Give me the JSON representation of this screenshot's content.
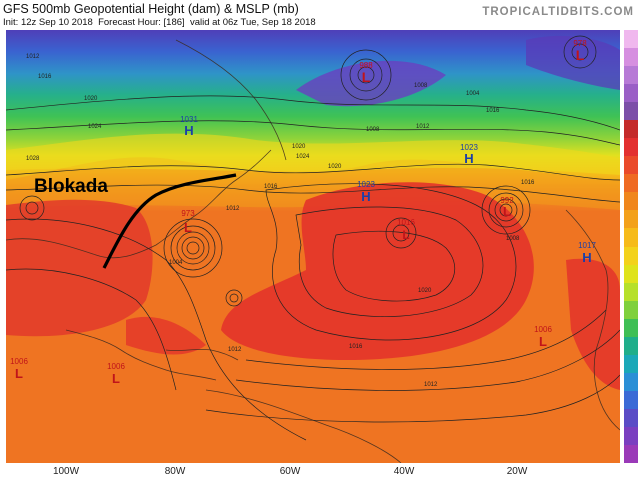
{
  "header": {
    "title": "GFS 500mb Geopotential Height (dam) & MSLP (mb)",
    "brand": "TROPICALTIDBITS.COM",
    "init": "Init: 12z Sep 10 2018",
    "forecast_hour": "Forecast Hour: [186]",
    "valid": "valid at 06z Tue, Sep 18 2018"
  },
  "annotation": {
    "label": "Blokada",
    "color": "#000000"
  },
  "pressure_centers": [
    {
      "type": "L",
      "value": "988"
    },
    {
      "type": "L",
      "value": "978"
    },
    {
      "type": "H",
      "value": "1031"
    },
    {
      "type": "H",
      "value": "1023"
    },
    {
      "type": "H",
      "value": "1023"
    },
    {
      "type": "L",
      "value": "973"
    },
    {
      "type": "L",
      "value": "1016"
    },
    {
      "type": "L",
      "value": "992"
    },
    {
      "type": "H",
      "value": "1017"
    },
    {
      "type": "L",
      "value": "1006"
    },
    {
      "type": "L",
      "value": "1006"
    },
    {
      "type": "L",
      "value": "1006"
    }
  ],
  "isobar_labels": [
    "1012",
    "1016",
    "1020",
    "1024",
    "1028",
    "1008",
    "1004",
    "1016",
    "1020",
    "1012",
    "1008",
    "1020",
    "1024",
    "1016",
    "1020",
    "1016",
    "1012",
    "1016",
    "1012",
    "1004",
    "1012",
    "1008"
  ],
  "longitude_labels": [
    "100W",
    "80W",
    "60W",
    "40W",
    "20W"
  ],
  "colors": {
    "low_marker": "#c0141a",
    "high_marker": "#1b3fa8",
    "isobar": "#222222"
  },
  "legend_colors": [
    "#f0b8ee",
    "#d68fe0",
    "#b77ad6",
    "#9a5fc6",
    "#7c4fa8",
    "#c42a2a",
    "#e33030",
    "#ea4a2a",
    "#ef6a22",
    "#f0861c",
    "#f3a11a",
    "#f6bb1a",
    "#f3d21c",
    "#dfe31c",
    "#b6e02a",
    "#7fd03c",
    "#3fbf55",
    "#1fae8a",
    "#1aa8b8",
    "#2a8fd6",
    "#3a6ad6",
    "#5a4cc6",
    "#7a3fc0",
    "#9a3ab8"
  ]
}
